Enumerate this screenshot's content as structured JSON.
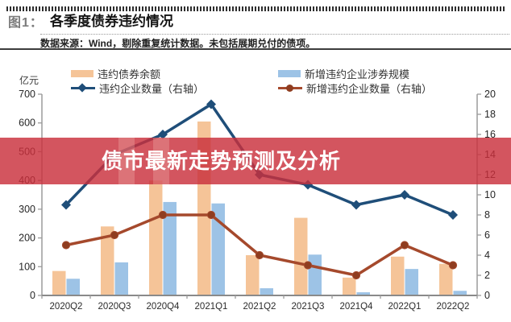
{
  "header": {
    "figure_label": "图1：",
    "title": "各季度债券违约情况",
    "source_note": "数据来源：Wind，剔除重复统计数据。未包括展期兑付的债项。"
  },
  "overlay": {
    "text": "债市最新走势预测及分析",
    "banner_color": "#C9303C",
    "text_color": "#FFFFFF"
  },
  "chart_data": {
    "type": "combo-bar-line",
    "title": "各季度债券违约情况",
    "grid": false,
    "legend_position": "top",
    "categories": [
      "2020Q2",
      "2020Q3",
      "2020Q4",
      "2021Q1",
      "2021Q2",
      "2021Q3",
      "2021Q4",
      "2022Q1",
      "2022Q2"
    ],
    "left_axis": {
      "unit_label": "亿元",
      "min": 0,
      "max": 700,
      "tick_step": 100
    },
    "right_axis": {
      "min": 0,
      "max": 20,
      "tick_step": 2
    },
    "series": [
      {
        "name": "违约债券余额",
        "type": "bar",
        "axis": "left",
        "color": "#F5C498",
        "values": [
          85,
          240,
          400,
          605,
          140,
          270,
          62,
          135,
          110
        ]
      },
      {
        "name": "新增违约企业涉券规模",
        "type": "bar",
        "axis": "left",
        "color": "#9DC3E6",
        "values": [
          58,
          115,
          325,
          320,
          25,
          142,
          11,
          92,
          16
        ]
      },
      {
        "name": "违约企业数量（右轴）",
        "type": "line",
        "marker": "diamond",
        "axis": "right",
        "color": "#1F4E79",
        "values": [
          9,
          14,
          16,
          19,
          12,
          11,
          9,
          10,
          8
        ]
      },
      {
        "name": "新增违约企业数量（右轴）",
        "type": "line",
        "marker": "circle",
        "axis": "right",
        "color": "#A5492C",
        "values": [
          5,
          6,
          8,
          8,
          4,
          3,
          2,
          5,
          3
        ]
      }
    ],
    "axis_color": "#9B9B9B",
    "tick_label_color": "#262626"
  }
}
